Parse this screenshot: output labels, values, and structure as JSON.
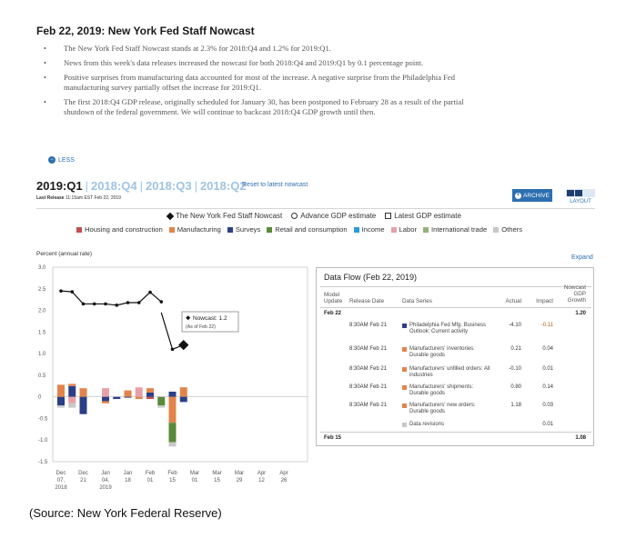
{
  "headline": "Feb 22, 2019: New York Fed Staff Nowcast",
  "bullets": [
    "The New York Fed Staff Nowcast stands at 2.3% for 2018:Q4 and 1.2% for 2019:Q1.",
    "News from this week's data releases increased the nowcast for both 2018:Q4 and 2019:Q1 by 0.1 percentage point.",
    "Positive surprises from manufacturing data accounted for most of the increase. A negative surprise from the Philadelphia Fed manufacturing survey partially offset the increase for 2019:Q1.",
    "The first 2018:Q4 GDP release, originally scheduled for January 30, has been postponed to February 28 as a result of the partial shutdown of the federal government. We will continue to backcast 2018:Q4 GDP growth until then."
  ],
  "less_label": "LESS",
  "tabs": [
    "2019:Q1",
    "2018:Q4",
    "2018:Q3",
    "2018:Q2"
  ],
  "reset_label": "Reset to latest nowcast",
  "last_release": {
    "label": "Last Release",
    "value": "11:15am EST Feb 22, 2019"
  },
  "archive_label": "ARCHIVE",
  "layout_label": "LAYOUT",
  "legend_top": [
    "The New York Fed Staff Nowcast",
    "Advance GDP estimate",
    "Latest GDP estimate"
  ],
  "legend_categories": [
    {
      "name": "Housing and construction",
      "color": "#c0504d"
    },
    {
      "name": "Manufacturing",
      "color": "#e2844a"
    },
    {
      "name": "Surveys",
      "color": "#2b3f87"
    },
    {
      "name": "Retail and consumption",
      "color": "#5a8a3a"
    },
    {
      "name": "Income",
      "color": "#2e9bd6"
    },
    {
      "name": "Labor",
      "color": "#e8a0a8"
    },
    {
      "name": "International trade",
      "color": "#93b17a"
    },
    {
      "name": "Others",
      "color": "#c8c8c8"
    }
  ],
  "expand_label": "Expand",
  "chart_data": {
    "type": "bar",
    "ylabel": "Percent (annual rate)",
    "ylim": [
      -1.5,
      3.0
    ],
    "yticks": [
      "3.0",
      "2.5",
      "2.0",
      "1.5",
      "1.0",
      "0.5",
      "0",
      "-0.5",
      "-1.0",
      "-1.5"
    ],
    "xticks": [
      {
        "m": "Dec",
        "d": "07,",
        "y": "2018"
      },
      {
        "m": "Dec",
        "d": "21",
        "y": ""
      },
      {
        "m": "Jan",
        "d": "04,",
        "y": "2019"
      },
      {
        "m": "Jan",
        "d": "18",
        "y": ""
      },
      {
        "m": "Feb",
        "d": "01",
        "y": ""
      },
      {
        "m": "Feb",
        "d": "15",
        "y": ""
      },
      {
        "m": "Mar",
        "d": "01",
        "y": ""
      },
      {
        "m": "Mar",
        "d": "15",
        "y": ""
      },
      {
        "m": "Mar",
        "d": "29",
        "y": ""
      },
      {
        "m": "Apr",
        "d": "12",
        "y": ""
      },
      {
        "m": "Apr",
        "d": "26",
        "y": ""
      }
    ],
    "nowcast_line": {
      "name": "The New York Fed Staff Nowcast",
      "weeks": [
        0,
        0.5,
        1,
        1.5,
        2,
        2.5,
        3,
        3.5,
        4,
        4.5
      ],
      "values": [
        2.45,
        2.43,
        2.15,
        2.15,
        2.15,
        2.12,
        2.18,
        2.18,
        2.42,
        2.2
      ]
    },
    "nowcast_segment": {
      "weeks": [
        4.5,
        5,
        5.5
      ],
      "values": [
        1.95,
        1.1,
        1.2
      ]
    },
    "tooltip": {
      "label": "Nowcast: 1.2",
      "sub": "(As of Feb 22)"
    },
    "stacked_bars": [
      {
        "week": 0,
        "parts": [
          {
            "c": "Surveys",
            "v": -0.2
          },
          {
            "c": "Manufacturing",
            "v": 0.28
          },
          {
            "c": "Others",
            "v": -0.05
          }
        ]
      },
      {
        "week": 0.5,
        "parts": [
          {
            "c": "Surveys",
            "v": 0.25
          },
          {
            "c": "Manufacturing",
            "v": 0.05
          },
          {
            "c": "Labor",
            "v": -0.15
          },
          {
            "c": "Others",
            "v": -0.1
          }
        ]
      },
      {
        "week": 1,
        "parts": [
          {
            "c": "Manufacturing",
            "v": 0.2
          },
          {
            "c": "Surveys",
            "v": -0.4
          }
        ]
      },
      {
        "week": 2,
        "parts": [
          {
            "c": "Labor",
            "v": 0.2
          },
          {
            "c": "Surveys",
            "v": -0.1
          },
          {
            "c": "Manufacturing",
            "v": -0.05
          }
        ]
      },
      {
        "week": 2.5,
        "parts": [
          {
            "c": "Surveys",
            "v": -0.05
          }
        ]
      },
      {
        "week": 3,
        "parts": [
          {
            "c": "Manufacturing",
            "v": 0.15
          },
          {
            "c": "Surveys",
            "v": -0.02
          }
        ]
      },
      {
        "week": 3.5,
        "parts": [
          {
            "c": "Labor",
            "v": 0.22
          },
          {
            "c": "Manufacturing",
            "v": -0.05
          }
        ]
      },
      {
        "week": 4,
        "parts": [
          {
            "c": "Surveys",
            "v": 0.1
          },
          {
            "c": "Manufacturing",
            "v": 0.1
          },
          {
            "c": "Housing and construction",
            "v": -0.05
          }
        ]
      },
      {
        "week": 4.5,
        "parts": [
          {
            "c": "Retail and consumption",
            "v": -0.2
          },
          {
            "c": "Others",
            "v": -0.05
          }
        ]
      },
      {
        "week": 5,
        "parts": [
          {
            "c": "Surveys",
            "v": 0.12
          },
          {
            "c": "Manufacturing",
            "v": -0.6
          },
          {
            "c": "Retail and consumption",
            "v": -0.45
          },
          {
            "c": "Others",
            "v": -0.1
          }
        ]
      },
      {
        "week": 5.5,
        "parts": [
          {
            "c": "Manufacturing",
            "v": 0.22
          },
          {
            "c": "Surveys",
            "v": -0.12
          }
        ]
      }
    ]
  },
  "data_flow": {
    "title": "Data Flow (Feb 22, 2019)",
    "headers": {
      "model_update": "Model\nUpdate",
      "release_date": "Release Date",
      "data_series": "Data Series",
      "actual": "Actual",
      "impact": "Impact",
      "nowcast": "Nowcast\nGDP\nGrowth"
    },
    "groups": [
      {
        "date": "Feb 22",
        "nowcast": "1.20",
        "rows": [
          {
            "time": "8:30AM Feb 21",
            "series": "Philadelphia Fed Mfg. Business Outlook: Current activity",
            "color": "#2b3f87",
            "actual": "-4.10",
            "impact": "-0.11"
          },
          {
            "time": "8:30AM Feb 21",
            "series": "Manufacturers' inventories: Durable goods",
            "color": "#e2844a",
            "actual": "0.21",
            "impact": "0.04"
          },
          {
            "time": "8:30AM Feb 21",
            "series": "Manufacturers' unfilled orders: All industries",
            "color": "#e2844a",
            "actual": "-0.10",
            "impact": "0.01"
          },
          {
            "time": "8:30AM Feb 21",
            "series": "Manufacturers' shipments: Durable goods",
            "color": "#e2844a",
            "actual": "0.80",
            "impact": "0.14"
          },
          {
            "time": "8:30AM Feb 21",
            "series": "Manufacturers' new orders: Durable goods",
            "color": "#e2844a",
            "actual": "1.18",
            "impact": "0.03"
          },
          {
            "time": "",
            "series": "Data revisions",
            "color": "#c8c8c8",
            "actual": "",
            "impact": "0.01"
          }
        ]
      },
      {
        "date": "Feb 15",
        "nowcast": "1.08",
        "rows": []
      }
    ]
  },
  "source": "(Source: New York Federal Reserve)"
}
